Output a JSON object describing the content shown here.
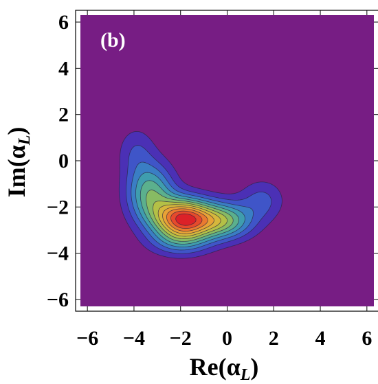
{
  "chart_data": {
    "type": "heatmap",
    "subtype": "filled-contour",
    "panel_label": "(b)",
    "xlabel": "Re(α",
    "xlabel_sub": "L",
    "ylabel": "Im(α",
    "ylabel_sub": "L",
    "xlim": [
      -6.3,
      6.3
    ],
    "ylim": [
      -6.3,
      6.3
    ],
    "xticks": [
      -6,
      -4,
      -2,
      0,
      2,
      4,
      6
    ],
    "yticks": [
      -6,
      -4,
      -2,
      0,
      2,
      4,
      6
    ],
    "xtick_labels": [
      "−6",
      "−4",
      "−2",
      "0",
      "2",
      "4",
      "6"
    ],
    "ytick_labels": [
      "−6",
      "−4",
      "−2",
      "0",
      "2",
      "4",
      "6"
    ],
    "background_color": "#771d84",
    "contour_levels": 12,
    "colormap": [
      "#4b30b5",
      "#3f55c8",
      "#3a7ec4",
      "#3f9dae",
      "#5bb08d",
      "#88bb63",
      "#b4c046",
      "#d6b73c",
      "#e8a236",
      "#ea7a30",
      "#e64a2c",
      "#dc2128"
    ],
    "components": [
      {
        "cx": -1.9,
        "cy": -2.5,
        "sx": 0.85,
        "sy": 0.6,
        "amp": 1.0
      },
      {
        "cx": -0.2,
        "cy": -2.6,
        "sx": 0.9,
        "sy": 0.55,
        "amp": 0.55
      },
      {
        "cx": -3.3,
        "cy": -1.4,
        "sx": 0.7,
        "sy": 0.9,
        "amp": 0.5
      },
      {
        "cx": -3.9,
        "cy": 0.4,
        "sx": 0.55,
        "sy": 0.75,
        "amp": 0.16
      },
      {
        "cx": 1.5,
        "cy": -1.7,
        "sx": 0.65,
        "sy": 0.6,
        "amp": 0.2
      },
      {
        "cx": -2.0,
        "cy": -3.5,
        "sx": 0.9,
        "sy": 0.45,
        "amp": 0.25
      }
    ]
  }
}
